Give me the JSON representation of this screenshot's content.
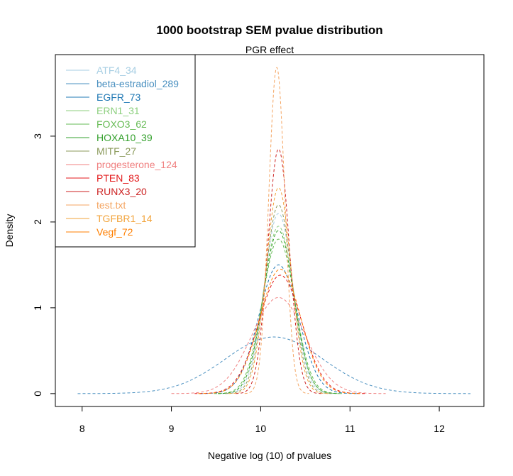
{
  "chart_data": {
    "type": "line",
    "title": "1000 bootstrap SEM pvalue distribution",
    "subtitle": "PGR effect",
    "xlabel": "Negative log (10) of pvalues",
    "ylabel": "Density",
    "xlim": [
      7.7,
      12.5
    ],
    "ylim": [
      -0.15,
      3.95
    ],
    "x_ticks": [
      "8",
      "9",
      "10",
      "11",
      "12"
    ],
    "x_tick_values": [
      8,
      9,
      10,
      11,
      12
    ],
    "y_ticks": [
      "0",
      "1",
      "2",
      "3"
    ],
    "y_tick_values": [
      0,
      1,
      2,
      3
    ],
    "grid": false,
    "legend_position": "top-left",
    "series": [
      {
        "name": "ATF4_34",
        "color": "#a6cee3",
        "center": 10.2,
        "peak": 2.1,
        "sigma": 0.16
      },
      {
        "name": "beta-estradiol_289",
        "color": "#4a90c0",
        "center": 10.15,
        "peak": 0.66,
        "sigma": 0.55
      },
      {
        "name": "EGFR_73",
        "color": "#1f78b4",
        "center": 10.2,
        "peak": 1.5,
        "sigma": 0.22
      },
      {
        "name": "ERN1_31",
        "color": "#8ccf7e",
        "center": 10.2,
        "peak": 1.95,
        "sigma": 0.17
      },
      {
        "name": "FOXO3_62",
        "color": "#66bb55",
        "center": 10.2,
        "peak": 1.8,
        "sigma": 0.18
      },
      {
        "name": "HOXA10_39",
        "color": "#33a02c",
        "center": 10.2,
        "peak": 1.9,
        "sigma": 0.17
      },
      {
        "name": "MITF_27",
        "color": "#8b9a5b",
        "center": 10.2,
        "peak": 2.2,
        "sigma": 0.15
      },
      {
        "name": "progesterone_124",
        "color": "#f08080",
        "center": 10.2,
        "peak": 1.12,
        "sigma": 0.3
      },
      {
        "name": "PTEN_83",
        "color": "#e31a1c",
        "center": 10.22,
        "peak": 1.38,
        "sigma": 0.24
      },
      {
        "name": "RUNX3_20",
        "color": "#cc2222",
        "center": 10.2,
        "peak": 2.85,
        "sigma": 0.12
      },
      {
        "name": "test.txt",
        "color": "#f4a460",
        "center": 10.18,
        "peak": 3.8,
        "sigma": 0.09
      },
      {
        "name": "TGFBR1_14",
        "color": "#f2a33a",
        "center": 10.2,
        "peak": 2.4,
        "sigma": 0.14
      },
      {
        "name": "Vegf_72",
        "color": "#ff7f00",
        "center": 10.22,
        "peak": 1.45,
        "sigma": 0.23
      }
    ]
  }
}
